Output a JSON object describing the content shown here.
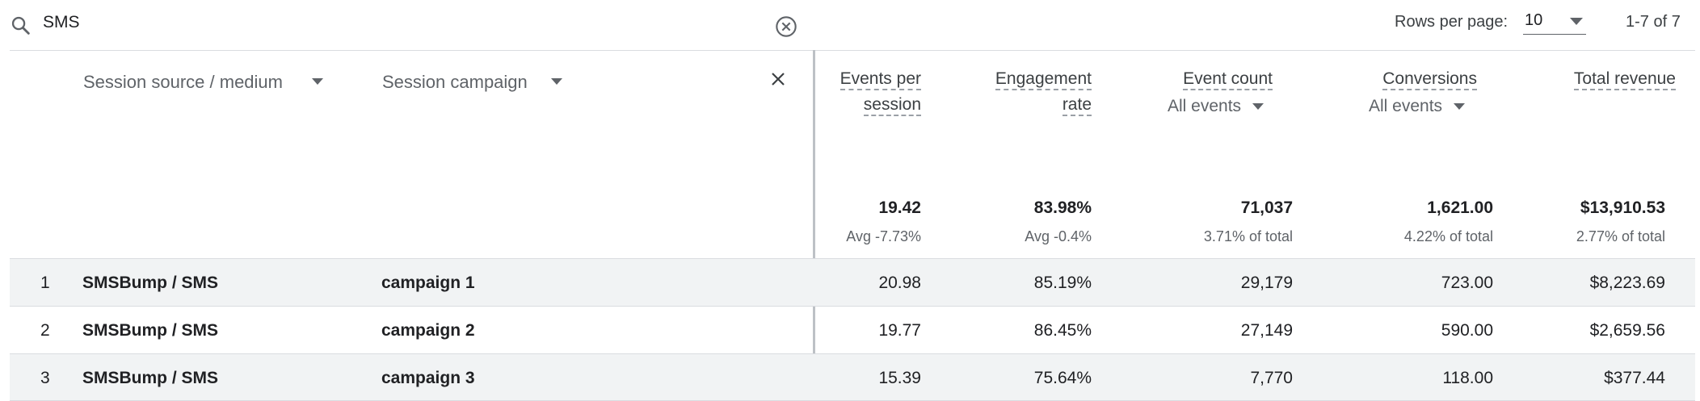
{
  "search": {
    "value": "SMS"
  },
  "pagination": {
    "rows_label": "Rows per page:",
    "rows_value": "10",
    "range_text": "1-7 of 7"
  },
  "table": {
    "dimension_headers": [
      "Session source / medium",
      "Session campaign"
    ],
    "metric_headers": [
      {
        "line1": "Events per",
        "line2": "session",
        "sub": ""
      },
      {
        "line1": "Engagement",
        "line2": "rate",
        "sub": ""
      },
      {
        "line1": "Event count",
        "line2": "",
        "sub": "All events"
      },
      {
        "line1": "Conversions",
        "line2": "",
        "sub": "All events"
      },
      {
        "line1": "Total revenue",
        "line2": "",
        "sub": ""
      }
    ],
    "totals": [
      {
        "value": "19.42",
        "sub": "Avg -7.73%"
      },
      {
        "value": "83.98%",
        "sub": "Avg -0.4%"
      },
      {
        "value": "71,037",
        "sub": "3.71% of total"
      },
      {
        "value": "1,621.00",
        "sub": "4.22% of total"
      },
      {
        "value": "$13,910.53",
        "sub": "2.77% of total"
      }
    ],
    "rows": [
      {
        "num": "1",
        "source": "SMSBump / SMS",
        "campaign": "campaign 1",
        "cells": [
          "20.98",
          "85.19%",
          "29,179",
          "723.00",
          "$8,223.69"
        ]
      },
      {
        "num": "2",
        "source": "SMSBump / SMS",
        "campaign": "campaign 2",
        "cells": [
          "19.77",
          "86.45%",
          "27,149",
          "590.00",
          "$2,659.56"
        ]
      },
      {
        "num": "3",
        "source": "SMSBump / SMS",
        "campaign": "campaign 3",
        "cells": [
          "15.39",
          "75.64%",
          "7,770",
          "118.00",
          "$377.44"
        ]
      }
    ]
  }
}
